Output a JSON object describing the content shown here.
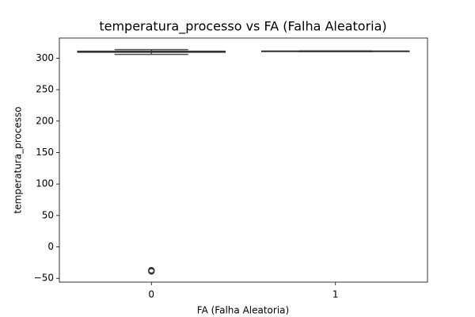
{
  "chart_data": {
    "type": "box",
    "title": "temperatura_processo vs FA (Falha Aleatoria)",
    "x_label": "FA (Falha Aleatoria)",
    "y_label": "temperatura_processo",
    "categories": [
      "0",
      "1"
    ],
    "color": "#4d4d4d",
    "boxes": [
      {
        "whislo": 306,
        "q1": 309.5,
        "median": 310,
        "q3": 311,
        "whishi": 313.5,
        "outliers": [
          -37,
          -38,
          -39
        ]
      },
      {
        "whislo": 310.5,
        "q1": 310.8,
        "median": 311,
        "q3": 311.2,
        "whishi": 311.5,
        "outliers": []
      }
    ],
    "ylim": [
      -56,
      332
    ],
    "yticks": [
      {
        "value": -50,
        "label": "−50"
      },
      0,
      50,
      100,
      150,
      200,
      250,
      300
    ],
    "grid": false
  }
}
